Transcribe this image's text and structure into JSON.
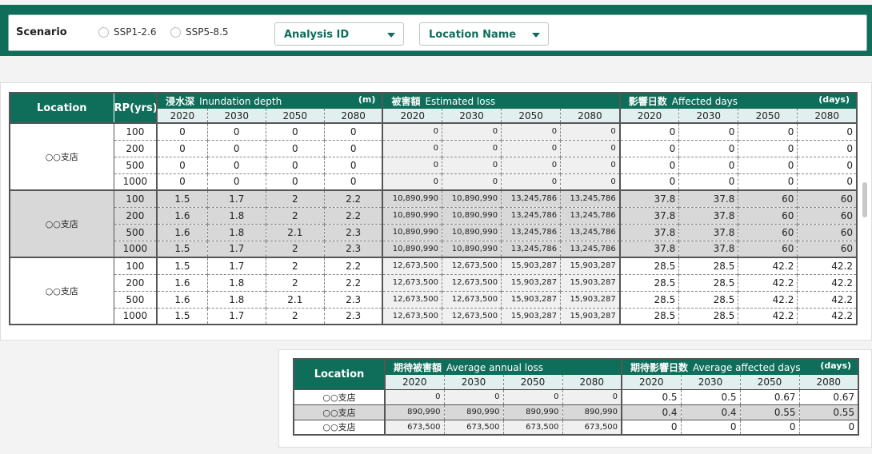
{
  "filter_bar": {
    "scenario_label": "Scenario",
    "radio_options": [
      "SSP1-2.6",
      "SSP5-8.5"
    ],
    "analysis_id_label": "Analysis ID",
    "location_name_label": "Location Name"
  },
  "main_table": {
    "location_header": "Location",
    "rp_header": "RP(yrs)",
    "groups": [
      {
        "title_jp": "浸水深",
        "title_en": "Inundation depth",
        "unit": "(m)"
      },
      {
        "title_jp": "被害額",
        "title_en": "Estimated loss",
        "unit": ""
      },
      {
        "title_jp": "影響日数",
        "title_en": "Affected days",
        "unit": "(days)"
      }
    ],
    "years": [
      "2020",
      "2030",
      "2050",
      "2080"
    ],
    "locations": [
      {
        "name": "○○支店",
        "rows": [
          {
            "rp": "100",
            "depth": [
              "0",
              "0",
              "0",
              "0"
            ],
            "loss": [
              "0",
              "0",
              "0",
              "0"
            ],
            "days": [
              "0",
              "0",
              "0",
              "0"
            ]
          },
          {
            "rp": "200",
            "depth": [
              "0",
              "0",
              "0",
              "0"
            ],
            "loss": [
              "0",
              "0",
              "0",
              "0"
            ],
            "days": [
              "0",
              "0",
              "0",
              "0"
            ]
          },
          {
            "rp": "500",
            "depth": [
              "0",
              "0",
              "0",
              "0"
            ],
            "loss": [
              "0",
              "0",
              "0",
              "0"
            ],
            "days": [
              "0",
              "0",
              "0",
              "0"
            ]
          },
          {
            "rp": "1000",
            "depth": [
              "0",
              "0",
              "0",
              "0"
            ],
            "loss": [
              "0",
              "0",
              "0",
              "0"
            ],
            "days": [
              "0",
              "0",
              "0",
              "0"
            ]
          }
        ]
      },
      {
        "name": "○○支店",
        "rows": [
          {
            "rp": "100",
            "depth": [
              "1.5",
              "1.7",
              "2",
              "2.2"
            ],
            "loss": [
              "10,890,990",
              "10,890,990",
              "13,245,786",
              "13,245,786"
            ],
            "days": [
              "37.8",
              "37.8",
              "60",
              "60"
            ]
          },
          {
            "rp": "200",
            "depth": [
              "1.6",
              "1.8",
              "2",
              "2.2"
            ],
            "loss": [
              "10,890,990",
              "10,890,990",
              "13,245,786",
              "13,245,786"
            ],
            "days": [
              "37.8",
              "37.8",
              "60",
              "60"
            ]
          },
          {
            "rp": "500",
            "depth": [
              "1.6",
              "1.8",
              "2.1",
              "2.3"
            ],
            "loss": [
              "10,890,990",
              "10,890,990",
              "13,245,786",
              "13,245,786"
            ],
            "days": [
              "37.8",
              "37.8",
              "60",
              "60"
            ]
          },
          {
            "rp": "1000",
            "depth": [
              "1.5",
              "1.7",
              "2",
              "2.3"
            ],
            "loss": [
              "10,890,990",
              "10,890,990",
              "13,245,786",
              "13,245,786"
            ],
            "days": [
              "37.8",
              "37.8",
              "60",
              "60"
            ]
          }
        ]
      },
      {
        "name": "○○支店",
        "rows": [
          {
            "rp": "100",
            "depth": [
              "1.5",
              "1.7",
              "2",
              "2.2"
            ],
            "loss": [
              "12,673,500",
              "12,673,500",
              "15,903,287",
              "15,903,287"
            ],
            "days": [
              "28.5",
              "28.5",
              "42.2",
              "42.2"
            ]
          },
          {
            "rp": "200",
            "depth": [
              "1.6",
              "1.8",
              "2",
              "2.2"
            ],
            "loss": [
              "12,673,500",
              "12,673,500",
              "15,903,287",
              "15,903,287"
            ],
            "days": [
              "28.5",
              "28.5",
              "42.2",
              "42.2"
            ]
          },
          {
            "rp": "500",
            "depth": [
              "1.6",
              "1.8",
              "2.1",
              "2.3"
            ],
            "loss": [
              "12,673,500",
              "12,673,500",
              "15,903,287",
              "15,903,287"
            ],
            "days": [
              "28.5",
              "28.5",
              "42.2",
              "42.2"
            ]
          },
          {
            "rp": "1000",
            "depth": [
              "1.5",
              "1.7",
              "2",
              "2.3"
            ],
            "loss": [
              "12,673,500",
              "12,673,500",
              "15,903,287",
              "15,903,287"
            ],
            "days": [
              "28.5",
              "28.5",
              "42.2",
              "42.2"
            ]
          }
        ]
      }
    ]
  },
  "avg_table": {
    "location_header": "Location",
    "groups": [
      {
        "title_jp": "期待被害額",
        "title_en": "Average annual loss",
        "unit": ""
      },
      {
        "title_jp": "期待影響日数",
        "title_en": "Average affected days",
        "unit": "(days)"
      }
    ],
    "years": [
      "2020",
      "2030",
      "2050",
      "2080"
    ],
    "rows": [
      {
        "name": "○○支店",
        "loss": [
          "0",
          "0",
          "0",
          "0"
        ],
        "days": [
          "0.5",
          "0.5",
          "0.67",
          "0.67"
        ]
      },
      {
        "name": "○○支店",
        "loss": [
          "890,990",
          "890,990",
          "890,990",
          "890,990"
        ],
        "days": [
          "0.4",
          "0.4",
          "0.55",
          "0.55"
        ]
      },
      {
        "name": "○○支店",
        "loss": [
          "673,500",
          "673,500",
          "673,500",
          "673,500"
        ],
        "days": [
          "0",
          "0",
          "0",
          "0"
        ]
      }
    ]
  }
}
